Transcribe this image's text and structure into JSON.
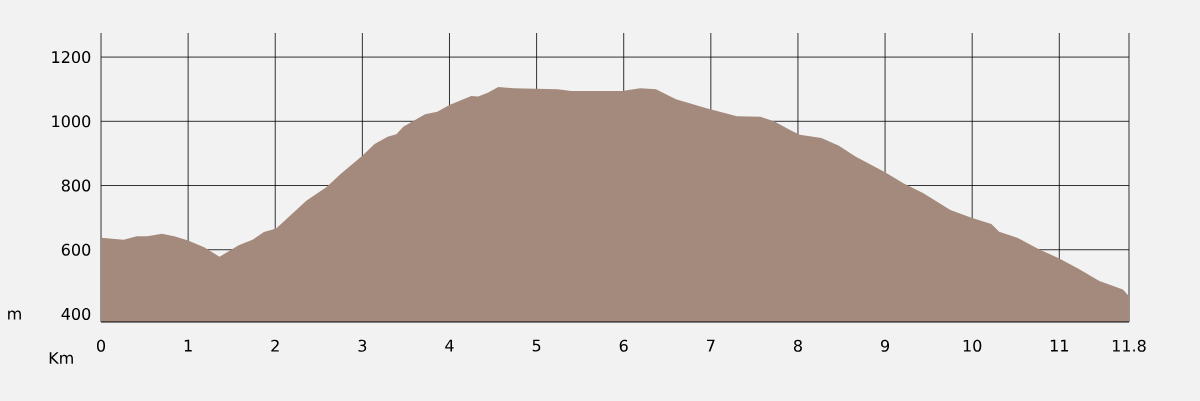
{
  "chart_data": {
    "type": "area",
    "xlabel": "Km",
    "ylabel": "m",
    "x": [
      0,
      0.26,
      0.41,
      0.53,
      0.7,
      0.84,
      1.0,
      1.19,
      1.36,
      1.58,
      1.74,
      1.87,
      2.01,
      2.36,
      2.59,
      2.75,
      3.0,
      3.14,
      3.29,
      3.39,
      3.47,
      3.72,
      3.86,
      4.0,
      4.25,
      4.33,
      4.44,
      4.56,
      4.74,
      5.24,
      5.4,
      5.98,
      6.19,
      6.37,
      6.6,
      6.95,
      7.3,
      7.57,
      7.73,
      7.92,
      8.02,
      8.27,
      8.47,
      8.66,
      9.0,
      9.21,
      9.44,
      9.75,
      10.0,
      10.22,
      10.31,
      10.53,
      10.76,
      11.0,
      11.22,
      11.46,
      11.73,
      11.8
    ],
    "values": [
      637,
      631,
      642,
      642,
      650,
      642,
      629,
      607,
      578,
      614,
      631,
      655,
      666,
      753,
      795,
      836,
      893,
      929,
      952,
      960,
      983,
      1022,
      1030,
      1051,
      1079,
      1077,
      1089,
      1107,
      1103,
      1100,
      1094,
      1094,
      1103,
      1100,
      1069,
      1041,
      1016,
      1014,
      999,
      971,
      958,
      948,
      924,
      890,
      841,
      807,
      776,
      724,
      699,
      680,
      656,
      636,
      602,
      573,
      541,
      503,
      476,
      455
    ],
    "color": "#a48a7c",
    "xlim": [
      0,
      11.8
    ],
    "ylim": [
      375,
      1275
    ],
    "xticks": [
      0,
      1,
      2,
      3,
      4,
      5,
      6,
      7,
      8,
      9,
      10,
      11,
      11.8
    ],
    "yticks": [
      400,
      600,
      800,
      1000,
      1200
    ],
    "grid": true
  }
}
